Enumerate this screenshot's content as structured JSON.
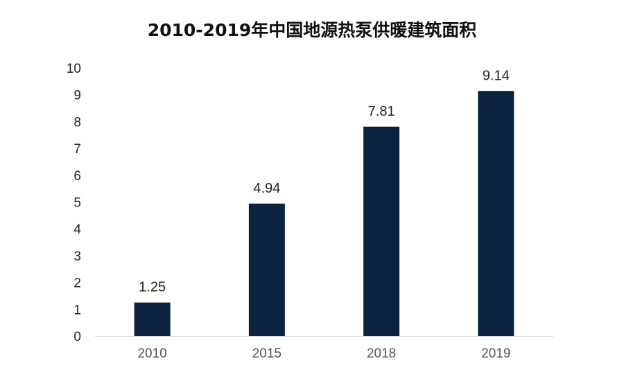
{
  "chart_data": {
    "type": "bar",
    "title": "2010-2019年中国地源热泵供暖建筑面积",
    "xlabel": "",
    "ylabel": "",
    "categories": [
      "2010",
      "2015",
      "2018",
      "2019"
    ],
    "values": [
      1.25,
      4.94,
      7.81,
      9.14
    ],
    "value_labels": [
      "1.25",
      "4.94",
      "7.81",
      "9.14"
    ],
    "ylim": [
      0,
      10
    ],
    "yticks": [
      "0",
      "1",
      "2",
      "3",
      "4",
      "5",
      "6",
      "7",
      "8",
      "9",
      "10"
    ],
    "grid": false,
    "legend": "none",
    "colors": {
      "bar": "#0b2340",
      "axis": "#d9d9d9"
    }
  }
}
